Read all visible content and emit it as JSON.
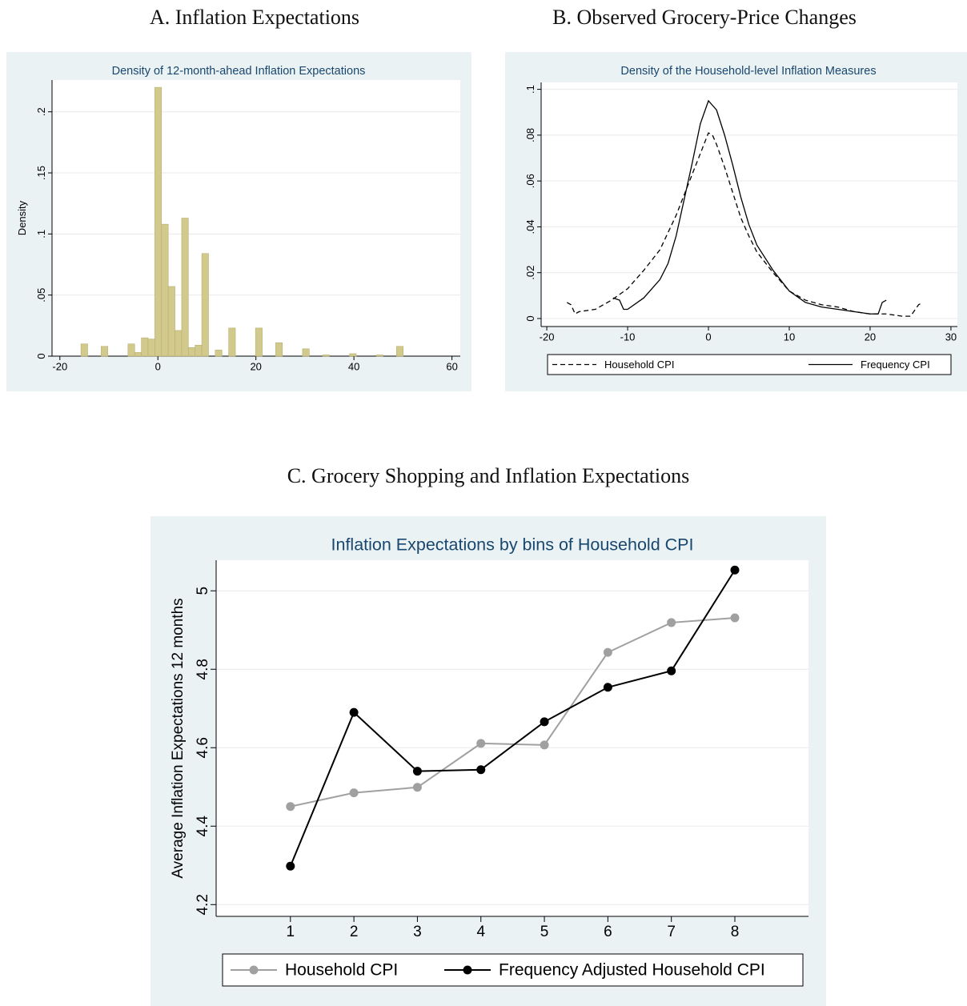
{
  "chart_data": [
    {
      "type": "histogram",
      "panel_title": "A. Inflation Expectations",
      "title": "Density of 12-month-ahead Inflation Expectations",
      "y_label": "Density",
      "color": "#d2c98c",
      "grid": true,
      "bins": [
        -15.7,
        -14.33,
        -12.96,
        -11.59,
        -10.22,
        -8.85,
        -7.48,
        -6.11,
        -4.74,
        -3.37,
        -2,
        -0.63,
        0.74,
        2.11,
        3.48,
        4.85,
        6.22,
        7.59,
        8.96,
        10.33,
        11.7,
        13.07,
        14.44,
        15.81,
        17.18,
        18.55,
        19.92,
        21.29,
        22.66,
        24.03,
        25.4,
        26.77,
        28.14,
        29.51,
        30.88,
        32.25,
        33.62,
        34.99,
        36.36,
        37.73,
        39.1,
        40.47,
        41.84,
        43.21,
        44.58,
        45.95,
        47.32,
        48.69,
        50.06
      ],
      "values": [
        0.01,
        0,
        0,
        0.008,
        0,
        0,
        0,
        0.01,
        0.003,
        0.015,
        0.014,
        0.22,
        0.108,
        0.057,
        0.021,
        0.113,
        0.007,
        0.009,
        0.084,
        0,
        0.005,
        0,
        0.023,
        0,
        0,
        0,
        0.023,
        0,
        0,
        0.011,
        0,
        0,
        0,
        0.006,
        0,
        0,
        0.001,
        0,
        0,
        0,
        0.002,
        0,
        0,
        0,
        0.001,
        0,
        0,
        0.008
      ],
      "xlim": [
        -21.6,
        61.7
      ],
      "xticks": [
        -20,
        0,
        20,
        40,
        60
      ],
      "ylim": [
        0,
        0.226
      ],
      "yticks": [
        0,
        {
          "value": 0.05,
          "label": ".05"
        },
        {
          "value": 0.1,
          "label": ".1"
        },
        {
          "value": 0.15,
          "label": ".15"
        },
        {
          "value": 0.2,
          "label": ".2"
        }
      ]
    },
    {
      "type": "line",
      "panel_title": "B. Observed Grocery-Price Changes",
      "title": "Density of the Household-level Inflation Measures",
      "grid": true,
      "legend": "bottom",
      "series": [
        {
          "name": "Household CPI",
          "color": "#000000",
          "dash": "dashed",
          "x": [
            -17.5,
            -17,
            -16.5,
            -16,
            -14,
            -12,
            -10,
            -8,
            -6,
            -4,
            -2,
            -1,
            0,
            0.5,
            1,
            2,
            3,
            4,
            5,
            6,
            8,
            10,
            12,
            14,
            16,
            18,
            20,
            22,
            24,
            25,
            26,
            26.5
          ],
          "values": [
            0.007,
            0.006,
            0.002,
            0.003,
            0.004,
            0.008,
            0.013,
            0.021,
            0.03,
            0.045,
            0.063,
            0.072,
            0.081,
            0.08,
            0.076,
            0.066,
            0.055,
            0.044,
            0.036,
            0.029,
            0.02,
            0.012,
            0.008,
            0.006,
            0.005,
            0.003,
            0.002,
            0.002,
            0.001,
            0.001,
            0.006,
            0.007
          ]
        },
        {
          "name": "Frequency CPI",
          "color": "#000000",
          "dash": "solid",
          "x": [
            -11.8,
            -11,
            -10.5,
            -10,
            -8,
            -6,
            -5,
            -4,
            -3,
            -2,
            -1,
            0,
            1,
            2,
            3,
            4,
            5,
            6,
            8,
            10,
            12,
            14,
            16,
            18,
            20,
            21,
            21.5,
            22
          ],
          "values": [
            0.009,
            0.008,
            0.004,
            0.004,
            0.009,
            0.017,
            0.024,
            0.036,
            0.052,
            0.068,
            0.085,
            0.095,
            0.091,
            0.08,
            0.067,
            0.053,
            0.041,
            0.032,
            0.021,
            0.012,
            0.007,
            0.005,
            0.004,
            0.003,
            0.002,
            0.002,
            0.007,
            0.008
          ]
        }
      ],
      "xlim": [
        -20.7,
        30.8
      ],
      "xticks": [
        -20,
        -10,
        0,
        10,
        20,
        30
      ],
      "ylim": [
        -0.0035,
        0.103
      ],
      "yticks": [
        0,
        {
          "value": 0.02,
          "label": ".02"
        },
        {
          "value": 0.04,
          "label": ".04"
        },
        {
          "value": 0.06,
          "label": ".06"
        },
        {
          "value": 0.08,
          "label": ".08"
        },
        {
          "value": 0.1,
          "label": ".1"
        }
      ]
    },
    {
      "type": "line",
      "panel_title": "C. Grocery Shopping and Inflation Expectations",
      "title": "Inflation Expectations by bins of Household CPI",
      "y_label": "Average Inflation Expectations 12 months",
      "grid": true,
      "legend": "bottom",
      "markers": true,
      "x": [
        1,
        2,
        3,
        4,
        5,
        6,
        7,
        8
      ],
      "series": [
        {
          "name": "Household CPI",
          "color": "#a0a0a0",
          "dash": "solid",
          "values": [
            4.45,
            4.485,
            4.499,
            4.611,
            4.607,
            4.843,
            4.919,
            4.931
          ]
        },
        {
          "name": "Frequency Adjusted Household CPI",
          "color": "#000000",
          "dash": "solid",
          "values": [
            4.298,
            4.69,
            4.54,
            4.544,
            4.666,
            4.754,
            4.796,
            5.053
          ]
        }
      ],
      "xlim": [
        -0.17,
        9.16
      ],
      "xticks": [
        1,
        2,
        3,
        4,
        5,
        6,
        7,
        8
      ],
      "ylim": [
        4.17,
        5.078
      ],
      "yticks": [
        4.2,
        4.4,
        4.6,
        4.8,
        5
      ]
    }
  ]
}
